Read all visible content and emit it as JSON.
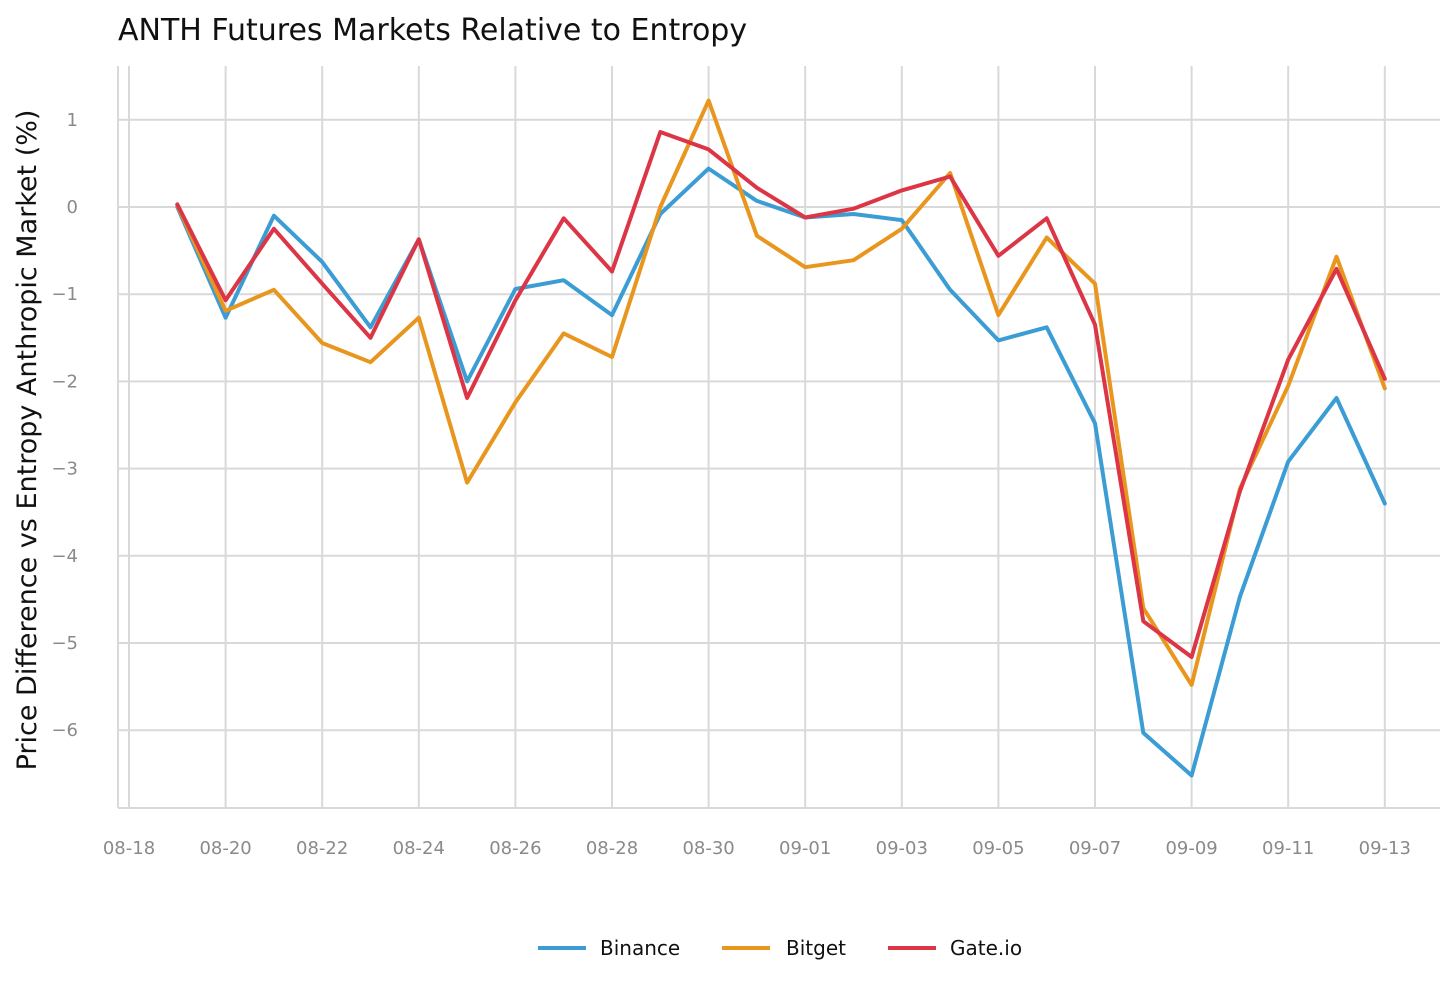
{
  "chart_data": {
    "type": "line",
    "title": "ANTH Futures Markets Relative to Entropy",
    "xlabel": "",
    "ylabel": "Price Difference vs Entropy Anthropic Market (%)",
    "grid": true,
    "legend_position": "bottom",
    "x_tick_labels": [
      "08-18",
      "08-20",
      "08-22",
      "08-24",
      "08-26",
      "08-28",
      "08-30",
      "09-01",
      "09-03",
      "09-05",
      "09-07",
      "09-09",
      "09-11",
      "09-13"
    ],
    "y_tick_labels": [
      "1",
      "0",
      "−1",
      "−2",
      "−3",
      "−4",
      "−5",
      "−6"
    ],
    "y_ticks": [
      1,
      0,
      -1,
      -2,
      -3,
      -4,
      -5,
      -6
    ],
    "ylim": [
      -6.8,
      1.6
    ],
    "xlim": [
      "08-18",
      "09-14"
    ],
    "x": [
      "08-19",
      "08-20",
      "08-21",
      "08-22",
      "08-23",
      "08-24",
      "08-25",
      "08-26",
      "08-27",
      "08-28",
      "08-29",
      "08-30",
      "08-31",
      "09-01",
      "09-02",
      "09-03",
      "09-04",
      "09-05",
      "09-06",
      "09-07",
      "09-08",
      "09-09",
      "09-10",
      "09-11",
      "09-12",
      "09-13"
    ],
    "series": [
      {
        "name": "Binance",
        "color": "#3b9dd4",
        "values": [
          0.0,
          -1.27,
          -0.1,
          -0.63,
          -1.38,
          -0.37,
          -2.0,
          -0.94,
          -0.84,
          -1.24,
          -0.08,
          0.44,
          0.07,
          -0.12,
          -0.08,
          -0.15,
          -0.95,
          -1.53,
          -1.38,
          -2.48,
          -6.03,
          -6.52,
          -4.47,
          -2.92,
          -2.19,
          -3.4
        ]
      },
      {
        "name": "Bitget",
        "color": "#e8961e",
        "values": [
          0.02,
          -1.19,
          -0.95,
          -1.56,
          -1.78,
          -1.27,
          -3.16,
          -2.24,
          -1.45,
          -1.72,
          0.0,
          1.22,
          -0.33,
          -0.69,
          -0.61,
          -0.25,
          0.39,
          -1.24,
          -0.35,
          -0.88,
          -4.6,
          -5.48,
          -3.23,
          -2.05,
          -0.57,
          -2.08
        ]
      },
      {
        "name": "Gate.io",
        "color": "#dc3545",
        "values": [
          0.03,
          -1.07,
          -0.25,
          -0.88,
          -1.5,
          -0.37,
          -2.19,
          -1.07,
          -0.13,
          -0.74,
          0.86,
          0.66,
          0.22,
          -0.12,
          -0.02,
          0.19,
          0.35,
          -0.56,
          -0.13,
          -1.35,
          -4.75,
          -5.16,
          -3.26,
          -1.75,
          -0.71,
          -1.97
        ]
      }
    ]
  }
}
